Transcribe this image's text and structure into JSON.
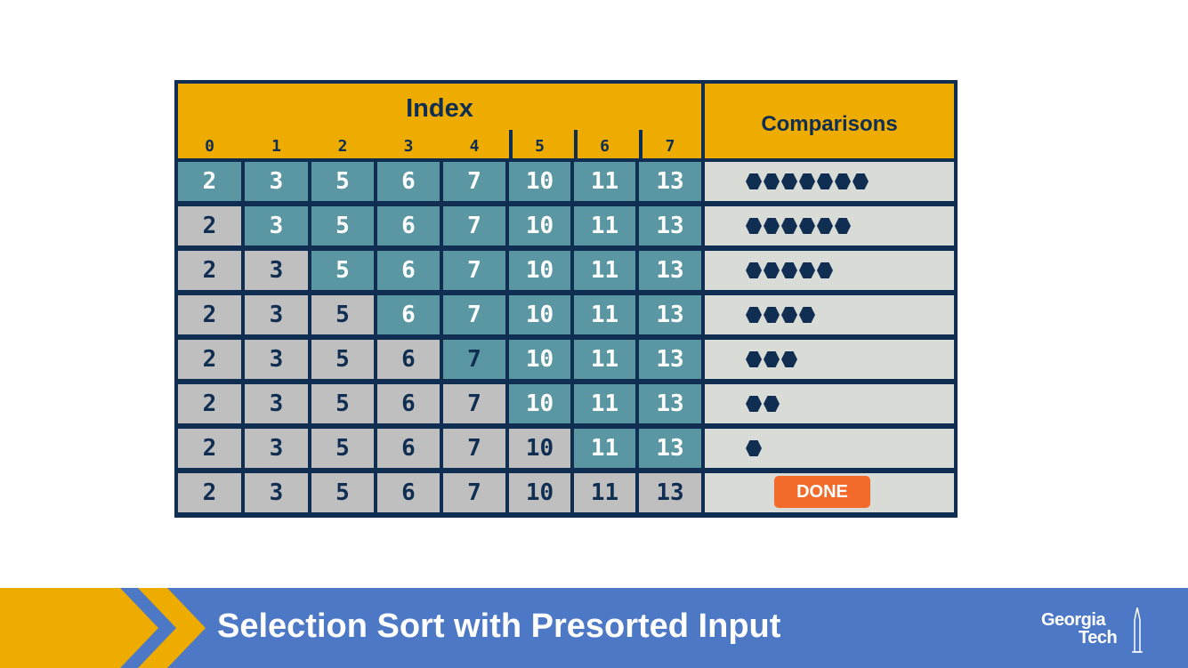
{
  "table": {
    "index_title": "Index",
    "comparisons_title": "Comparisons",
    "indices": [
      "0",
      "1",
      "2",
      "3",
      "4",
      "5",
      "6",
      "7"
    ],
    "rows": [
      {
        "values": [
          "2",
          "3",
          "5",
          "6",
          "7",
          "10",
          "11",
          "13"
        ],
        "sorted_count": 0,
        "comparisons": 7
      },
      {
        "values": [
          "2",
          "3",
          "5",
          "6",
          "7",
          "10",
          "11",
          "13"
        ],
        "sorted_count": 1,
        "comparisons": 6
      },
      {
        "values": [
          "2",
          "3",
          "5",
          "6",
          "7",
          "10",
          "11",
          "13"
        ],
        "sorted_count": 2,
        "comparisons": 5
      },
      {
        "values": [
          "2",
          "3",
          "5",
          "6",
          "7",
          "10",
          "11",
          "13"
        ],
        "sorted_count": 3,
        "comparisons": 4
      },
      {
        "values": [
          "2",
          "3",
          "5",
          "6",
          "7",
          "10",
          "11",
          "13"
        ],
        "sorted_count": 4,
        "comparisons": 3
      },
      {
        "values": [
          "2",
          "3",
          "5",
          "6",
          "7",
          "10",
          "11",
          "13"
        ],
        "sorted_count": 5,
        "comparisons": 2
      },
      {
        "values": [
          "2",
          "3",
          "5",
          "6",
          "7",
          "10",
          "11",
          "13"
        ],
        "sorted_count": 6,
        "comparisons": 1
      },
      {
        "values": [
          "2",
          "3",
          "5",
          "6",
          "7",
          "10",
          "11",
          "13"
        ],
        "sorted_count": 8,
        "comparisons": 0,
        "done_label": "DONE"
      }
    ]
  },
  "footer": {
    "title": "Selection Sort with Presorted Input",
    "logo_line1": "Georgia",
    "logo_line2": "Tech"
  },
  "colors": {
    "navy": "#0f2e52",
    "gold": "#eeab00",
    "teal": "#5b97a3",
    "sorted_gray": "#bfbfbf",
    "comparison_bg": "#d9dcd6",
    "done_orange": "#f26b2a",
    "footer_blue": "#4d78c5"
  }
}
